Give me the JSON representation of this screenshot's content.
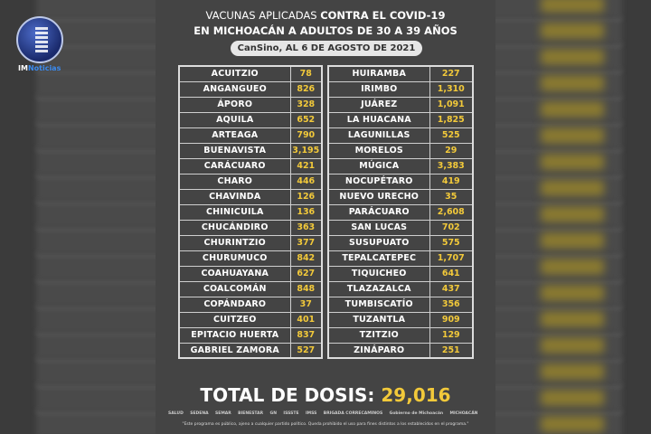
{
  "title": {
    "line1_light": "VACUNAS APLICADAS ",
    "line1_bold": "CONTRA EL COVID-19",
    "line2": "EN MICHOACÁN A ADULTOS DE 30 A 39 AÑOS",
    "subtitle": "CanSino, AL 6 DE AGOSTO DE 2021"
  },
  "brand": {
    "im": "IM",
    "noticias": "Noticias"
  },
  "left_table": [
    {
      "name": "ACUITZIO",
      "value": "78"
    },
    {
      "name": "ANGANGUEO",
      "value": "826"
    },
    {
      "name": "ÁPORO",
      "value": "328"
    },
    {
      "name": "AQUILA",
      "value": "652"
    },
    {
      "name": "ARTEAGA",
      "value": "790"
    },
    {
      "name": "BUENAVISTA",
      "value": "3,195"
    },
    {
      "name": "CARÁCUARO",
      "value": "421"
    },
    {
      "name": "CHARO",
      "value": "446"
    },
    {
      "name": "CHAVINDA",
      "value": "126"
    },
    {
      "name": "CHINICUILA",
      "value": "136"
    },
    {
      "name": "CHUCÁNDIRO",
      "value": "363"
    },
    {
      "name": "CHURINTZIO",
      "value": "377"
    },
    {
      "name": "CHURUMUCO",
      "value": "842"
    },
    {
      "name": "COAHUAYANA",
      "value": "627"
    },
    {
      "name": "COALCOMÁN",
      "value": "848"
    },
    {
      "name": "COPÁNDARO",
      "value": "37"
    },
    {
      "name": "CUITZEO",
      "value": "401"
    },
    {
      "name": "EPITACIO HUERTA",
      "value": "837"
    },
    {
      "name": "GABRIEL ZAMORA",
      "value": "527"
    }
  ],
  "right_table": [
    {
      "name": "HUIRAMBA",
      "value": "227"
    },
    {
      "name": "IRIMBO",
      "value": "1,310"
    },
    {
      "name": "JUÁREZ",
      "value": "1,091"
    },
    {
      "name": "LA HUACANA",
      "value": "1,825"
    },
    {
      "name": "LAGUNILLAS",
      "value": "525"
    },
    {
      "name": "MORELOS",
      "value": "29"
    },
    {
      "name": "MÚGICA",
      "value": "3,383"
    },
    {
      "name": "NOCUPÉTARO",
      "value": "419"
    },
    {
      "name": "NUEVO URECHO",
      "value": "35"
    },
    {
      "name": "PARÁCUARO",
      "value": "2,608"
    },
    {
      "name": "SAN LUCAS",
      "value": "702"
    },
    {
      "name": "SUSUPUATO",
      "value": "575"
    },
    {
      "name": "TEPALCATEPEC",
      "value": "1,707"
    },
    {
      "name": "TIQUICHEO",
      "value": "641"
    },
    {
      "name": "TLAZAZALCA",
      "value": "437"
    },
    {
      "name": "TUMBISCATÍO",
      "value": "356"
    },
    {
      "name": "TUZANTLA",
      "value": "909"
    },
    {
      "name": "TZITZIO",
      "value": "129"
    },
    {
      "name": "ZINÁPARO",
      "value": "251"
    }
  ],
  "total": {
    "label": "TOTAL DE DOSIS: ",
    "value": "29,016"
  },
  "logos": [
    "SALUD",
    "SEDENA",
    "SEMAR",
    "BIENESTAR",
    "GN",
    "ISSSTE",
    "IMSS",
    "BRIGADA CORRECAMINOS",
    "Gobierno de Michoacán",
    "MICHOACÁN",
    ""
  ],
  "disclaimer": "\"Este programa es público, ajeno a cualquier partido político. Queda prohibido el uso para fines distintos a los establecidos en el programa.\"",
  "colors": {
    "panel": "#444444",
    "value": "#f2c93a",
    "text": "#ffffff"
  }
}
